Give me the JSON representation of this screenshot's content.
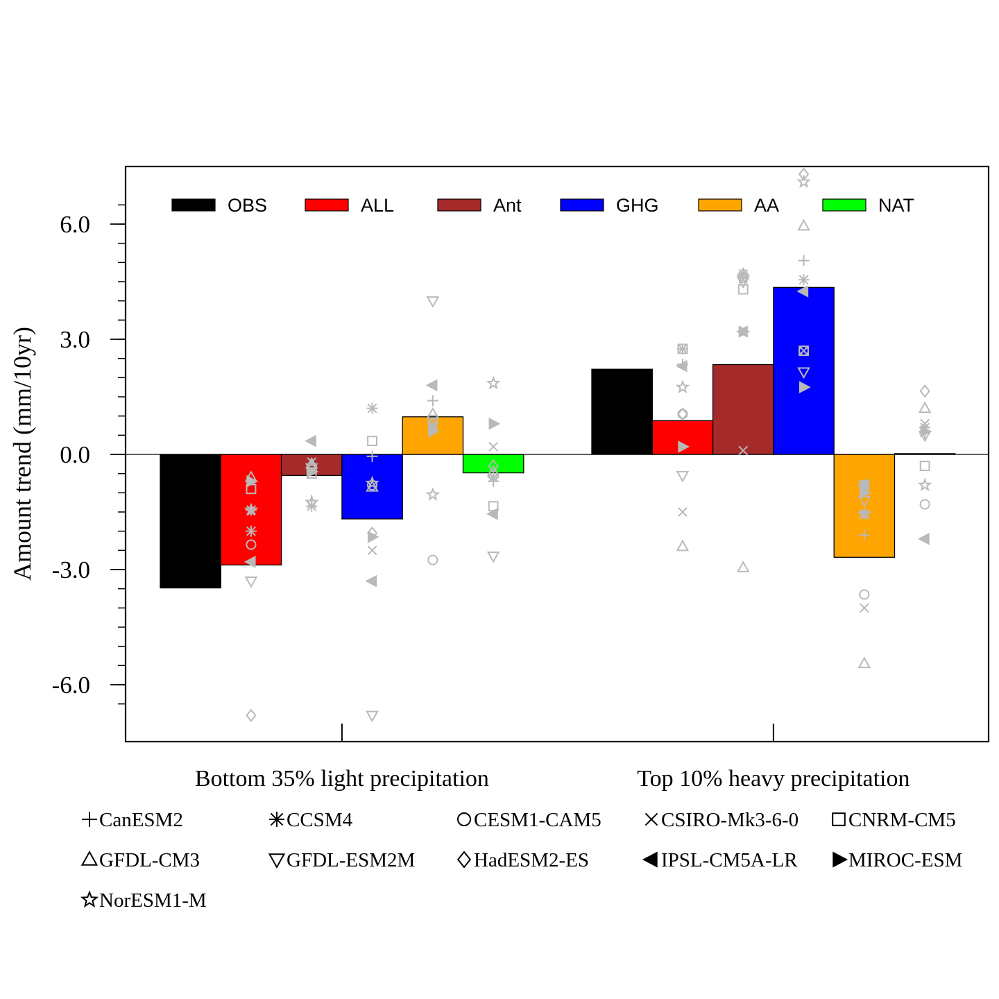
{
  "chart_data": {
    "type": "bar",
    "title": "",
    "xlabel": "",
    "ylabel": "Amount trend (mm/10yr)",
    "ylim": [
      -7.5,
      7.5
    ],
    "yticks": [
      -6.0,
      -3.0,
      0.0,
      3.0,
      6.0
    ],
    "ytick_labels": [
      "-6.0",
      "-3.0",
      "0.0",
      "3.0",
      "6.0"
    ],
    "grid": false,
    "legend_position": "top",
    "categories": [
      "Bottom 35% light precipitation",
      "Top 10% heavy precipitation"
    ],
    "series": [
      {
        "name": "OBS",
        "color": "#000000",
        "values": [
          -3.48,
          2.22
        ]
      },
      {
        "name": "ALL",
        "color": "#ff0000",
        "values": [
          -2.88,
          0.88
        ]
      },
      {
        "name": "Ant",
        "color": "#a52a2a",
        "values": [
          -0.55,
          2.34
        ]
      },
      {
        "name": "GHG",
        "color": "#0000ff",
        "values": [
          -1.68,
          4.35
        ]
      },
      {
        "name": "AA",
        "color": "#ffa500",
        "values": [
          0.98,
          -2.68
        ]
      },
      {
        "name": "NAT",
        "color": "#00ff00",
        "values": [
          -0.48,
          0.02
        ]
      }
    ],
    "model_legend": [
      {
        "marker": "plus",
        "label": "CanESM2"
      },
      {
        "marker": "asterisk",
        "label": "CCSM4"
      },
      {
        "marker": "circle",
        "label": "CESM1-CAM5"
      },
      {
        "marker": "cross",
        "label": "CSIRO-Mk3-6-0"
      },
      {
        "marker": "square",
        "label": "CNRM-CM5"
      },
      {
        "marker": "triangle-up",
        "label": "GFDL-CM3"
      },
      {
        "marker": "triangle-down",
        "label": "GFDL-ESM2M"
      },
      {
        "marker": "diamond",
        "label": "HadESM2-ES"
      },
      {
        "marker": "triangle-left",
        "label": "IPSL-CM5A-LR"
      },
      {
        "marker": "triangle-right",
        "label": "MIROC-ESM"
      },
      {
        "marker": "star",
        "label": "NorESM1-M"
      }
    ],
    "model_points": [
      {
        "group": 0,
        "series": "ALL",
        "values": {
          "plus": -2.0,
          "asterisk": -1.45,
          "circle": -2.35,
          "cross": -2.0,
          "square": -0.9,
          "triangle-up": -0.6,
          "triangle-down": -3.3,
          "diamond": -6.8,
          "triangle-left": -2.8,
          "triangle-right": -0.7,
          "star": -1.45
        }
      },
      {
        "group": 0,
        "series": "Ant",
        "values": {
          "plus": -1.2,
          "asterisk": -1.35,
          "circle": -0.4,
          "cross": -0.2,
          "square": -0.5,
          "triangle-up": -0.25,
          "triangle-down": -0.35,
          "diamond": -0.3,
          "triangle-left": 0.35,
          "triangle-right": -0.45,
          "star": -1.25
        }
      },
      {
        "group": 0,
        "series": "GHG",
        "values": {
          "plus": -0.05,
          "asterisk": 1.2,
          "circle": -0.8,
          "cross": -2.5,
          "square": 0.35,
          "triangle-up": -0.85,
          "triangle-down": -6.8,
          "diamond": -2.05,
          "triangle-left": -3.3,
          "triangle-right": -2.15,
          "star": -0.75
        }
      },
      {
        "group": 0,
        "series": "AA",
        "values": {
          "plus": 1.4,
          "asterisk": 0.7,
          "circle": -2.75,
          "cross": 0.75,
          "square": 0.9,
          "triangle-up": 1.05,
          "triangle-down": 4.0,
          "diamond": 0.8,
          "triangle-left": 1.8,
          "triangle-right": 0.6,
          "star": -1.05
        }
      },
      {
        "group": 0,
        "series": "NAT",
        "values": {
          "plus": -0.7,
          "asterisk": -0.6,
          "circle": -0.55,
          "cross": 0.2,
          "square": -1.35,
          "triangle-up": -0.45,
          "triangle-down": -2.65,
          "diamond": -0.3,
          "triangle-left": -1.55,
          "triangle-right": 0.8,
          "star": 1.85
        }
      },
      {
        "group": 1,
        "series": "ALL",
        "values": {
          "plus": 2.35,
          "asterisk": 2.75,
          "circle": 1.05,
          "cross": -1.5,
          "square": 2.75,
          "triangle-up": -2.4,
          "triangle-down": -0.55,
          "diamond": 1.05,
          "triangle-left": 2.3,
          "triangle-right": 0.2,
          "star": 1.75
        }
      },
      {
        "group": 1,
        "series": "Ant",
        "values": {
          "plus": 4.7,
          "asterisk": 4.7,
          "circle": 4.6,
          "cross": 0.1,
          "square": 4.3,
          "triangle-up": -2.95,
          "triangle-down": 4.5,
          "diamond": 4.7,
          "triangle-left": 3.2,
          "triangle-right": 3.2,
          "star": 4.6
        }
      },
      {
        "group": 1,
        "series": "GHG",
        "values": {
          "plus": 5.05,
          "asterisk": 4.55,
          "circle": 2.7,
          "cross": 2.7,
          "square": 2.7,
          "triangle-up": 5.95,
          "triangle-down": 2.15,
          "diamond": 7.3,
          "triangle-left": 4.25,
          "triangle-right": 1.75,
          "star": 7.1
        }
      },
      {
        "group": 1,
        "series": "AA",
        "values": {
          "plus": -2.1,
          "asterisk": -1.55,
          "circle": -3.65,
          "cross": -4.0,
          "square": -0.8,
          "triangle-up": -5.45,
          "triangle-down": -1.2,
          "diamond": -0.8,
          "triangle-left": -0.8,
          "triangle-right": -1.0,
          "star": -1.55
        }
      },
      {
        "group": 1,
        "series": "NAT",
        "values": {
          "plus": 0.55,
          "asterisk": 0.7,
          "circle": -1.3,
          "cross": 0.8,
          "square": -0.3,
          "triangle-up": 1.2,
          "triangle-down": 0.5,
          "diamond": 1.65,
          "triangle-left": -2.2,
          "triangle-right": 0.6,
          "star": -0.8
        }
      }
    ]
  }
}
